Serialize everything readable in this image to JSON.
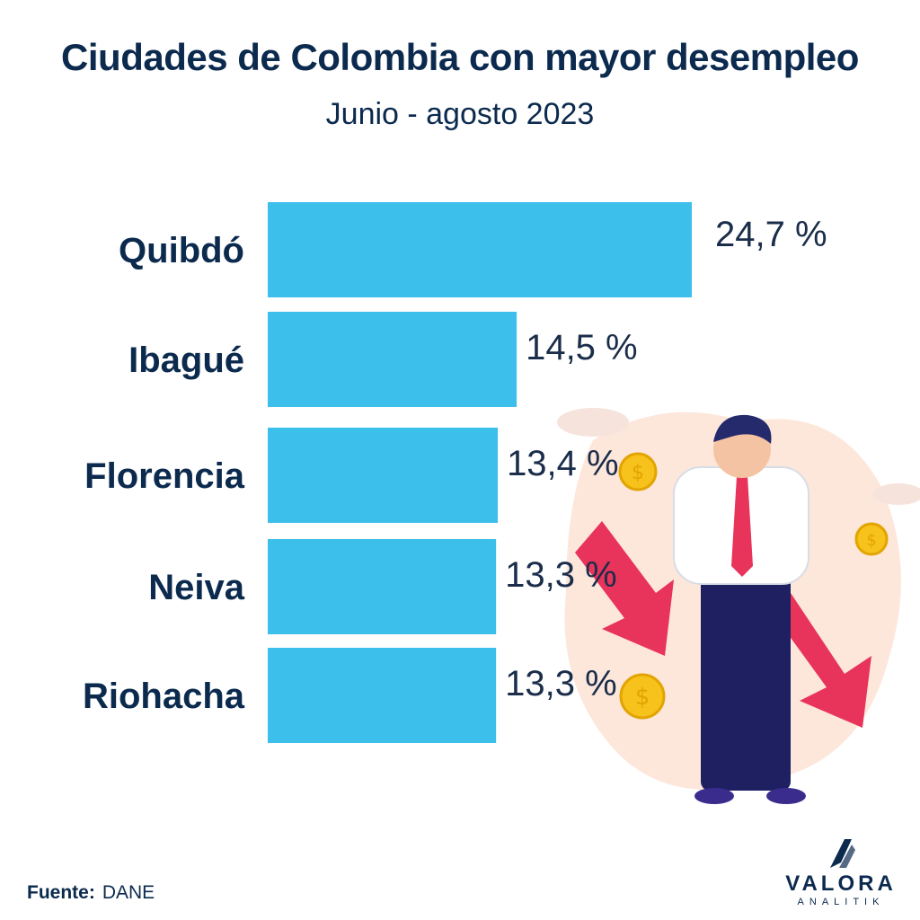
{
  "colors": {
    "bar": "#3dbfec",
    "text": "#0b2a4e"
  },
  "source": {
    "label": "Fuente:",
    "value": "DANE"
  },
  "logo": {
    "name": "VALORA",
    "sub": "ANALITIK"
  },
  "chart_data": {
    "type": "bar",
    "orientation": "horizontal",
    "title": "Ciudades de Colombia con mayor desempleo",
    "subtitle": "Junio - agosto 2023",
    "categories": [
      "Quibdó",
      "Ibagué",
      "Florencia",
      "Neiva",
      "Riohacha"
    ],
    "values": [
      24.7,
      14.5,
      13.4,
      13.3,
      13.3
    ],
    "value_labels": [
      "24,7 %",
      "14,5 %",
      "13,4 %",
      "13,3 %",
      "13,3 %"
    ],
    "xlim": [
      0,
      24.7
    ],
    "grid": false,
    "legend": "none"
  }
}
